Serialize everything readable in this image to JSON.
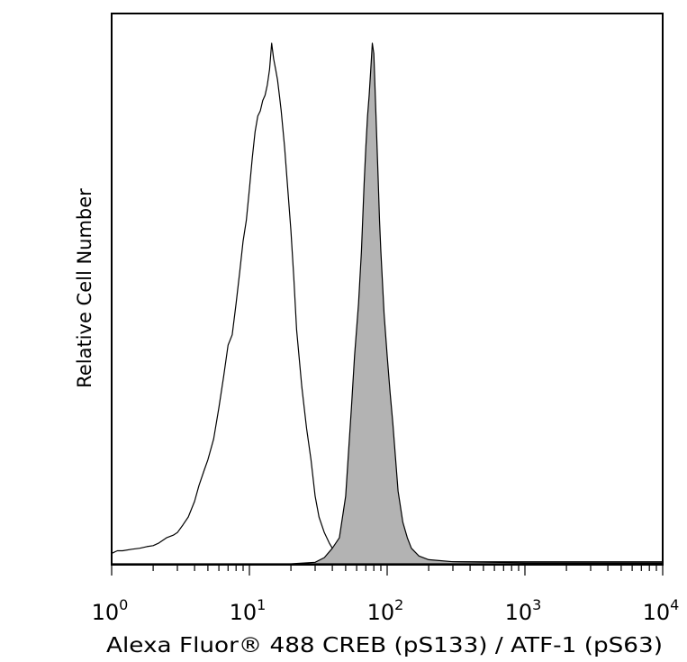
{
  "chart_data": {
    "type": "area",
    "title": "",
    "xlabel": "Alexa Fluor® 488 CREB (pS133) / ATF-1 (pS63)",
    "ylabel": "Relative Cell Number",
    "xscale": "log",
    "xlim": [
      1,
      10000
    ],
    "ylim": [
      0,
      1.0
    ],
    "grid": false,
    "legend": "none",
    "x_ticks": [
      {
        "base": "10",
        "exp": "0"
      },
      {
        "base": "10",
        "exp": "1"
      },
      {
        "base": "10",
        "exp": "2"
      },
      {
        "base": "10",
        "exp": "3"
      },
      {
        "base": "10",
        "exp": "4"
      }
    ],
    "series": [
      {
        "style": "outline",
        "color": "#000000",
        "fill": "none",
        "x": [
          1.0,
          1.1,
          1.2,
          1.4,
          1.6,
          1.8,
          2.0,
          2.2,
          2.5,
          2.8,
          3.0,
          3.3,
          3.6,
          4.0,
          4.3,
          4.7,
          5.0,
          5.5,
          6.0,
          6.5,
          7.0,
          7.5,
          8.0,
          8.5,
          9.0,
          9.5,
          10.0,
          10.5,
          11.0,
          11.5,
          12.0,
          12.5,
          13.0,
          13.5,
          14.0,
          14.5,
          15.0,
          15.5,
          16.0,
          16.5,
          17.0,
          18.0,
          19.0,
          20.0,
          21.0,
          22.0,
          24.0,
          26.0,
          28.0,
          30.0,
          32.0,
          35.0,
          38.0,
          40.0,
          45.0,
          50.0,
          55.0,
          60.0,
          70.0,
          80.0,
          100.0,
          150.0,
          300.0,
          1000.0,
          3000.0,
          10000.0
        ],
        "y": [
          0.02,
          0.025,
          0.025,
          0.028,
          0.03,
          0.033,
          0.035,
          0.04,
          0.05,
          0.055,
          0.06,
          0.075,
          0.09,
          0.12,
          0.15,
          0.18,
          0.2,
          0.24,
          0.3,
          0.36,
          0.42,
          0.44,
          0.5,
          0.56,
          0.62,
          0.66,
          0.72,
          0.78,
          0.83,
          0.86,
          0.87,
          0.89,
          0.9,
          0.92,
          0.95,
          1.0,
          0.97,
          0.95,
          0.93,
          0.9,
          0.87,
          0.8,
          0.72,
          0.64,
          0.55,
          0.45,
          0.34,
          0.26,
          0.2,
          0.13,
          0.09,
          0.06,
          0.04,
          0.03,
          0.018,
          0.015,
          0.012,
          0.01,
          0.008,
          0.007,
          0.006,
          0.005,
          0.004,
          0.004,
          0.004,
          0.004
        ]
      },
      {
        "style": "filled",
        "color": "#000000",
        "fill": "#b3b3b3",
        "x": [
          1.0,
          20.0,
          30.0,
          35.0,
          40.0,
          45.0,
          50.0,
          55.0,
          58.0,
          62.0,
          65.0,
          68.0,
          70.0,
          72.0,
          74.0,
          76.0,
          78.0,
          80.0,
          82.0,
          84.0,
          86.0,
          88.0,
          90.0,
          95.0,
          100.0,
          105.0,
          110.0,
          120.0,
          130.0,
          140.0,
          150.0,
          170.0,
          200.0,
          300.0,
          1000.0,
          10000.0
        ],
        "y": [
          0.0,
          0.0,
          0.003,
          0.012,
          0.03,
          0.05,
          0.13,
          0.3,
          0.4,
          0.5,
          0.6,
          0.73,
          0.8,
          0.86,
          0.9,
          0.95,
          1.0,
          0.98,
          0.9,
          0.82,
          0.74,
          0.66,
          0.6,
          0.48,
          0.4,
          0.33,
          0.27,
          0.14,
          0.08,
          0.05,
          0.03,
          0.015,
          0.008,
          0.004,
          0.002,
          0.002
        ]
      }
    ]
  }
}
